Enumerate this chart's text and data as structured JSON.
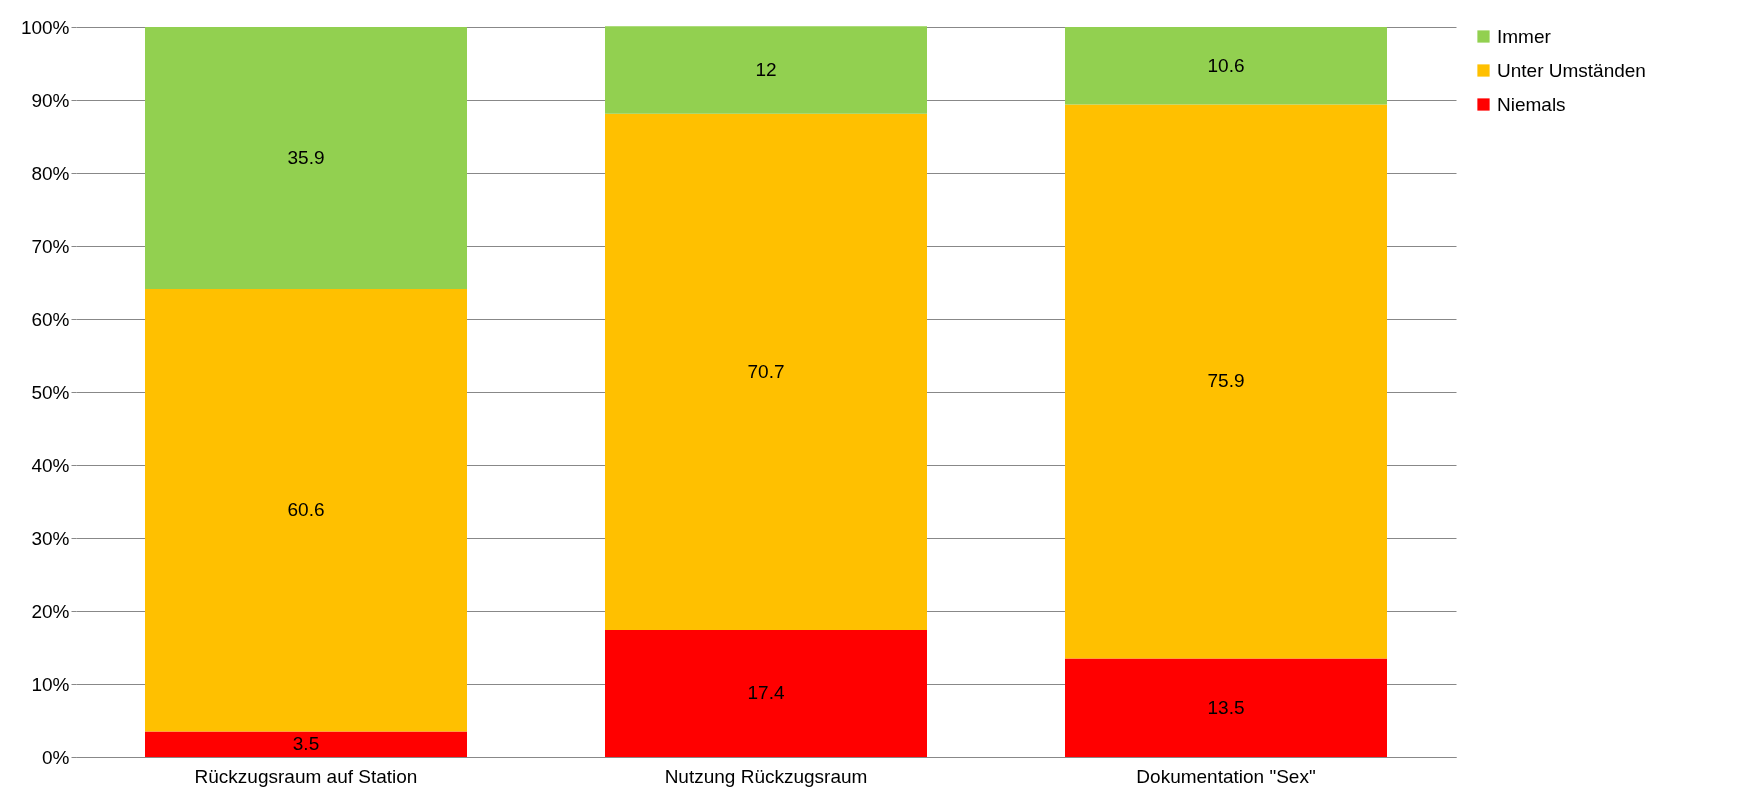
{
  "chart_data": {
    "type": "bar",
    "stacked": true,
    "categories": [
      "Rückzugsraum auf Station",
      "Nutzung Rückzugsraum",
      "Dokumentation \"Sex\""
    ],
    "series": [
      {
        "name": "Niemals",
        "color": "#ff0000",
        "values": [
          3.5,
          17.4,
          13.5
        ]
      },
      {
        "name": "Unter Umständen",
        "color": "#ffc000",
        "values": [
          60.6,
          70.7,
          75.9
        ]
      },
      {
        "name": "Immer",
        "color": "#92d050",
        "values": [
          35.9,
          12,
          10.6
        ]
      }
    ],
    "ylim": [
      0,
      100
    ],
    "yticks": [
      {
        "value": 0,
        "label": "0%"
      },
      {
        "value": 10,
        "label": "10%"
      },
      {
        "value": 20,
        "label": "20%"
      },
      {
        "value": 30,
        "label": "30%"
      },
      {
        "value": 40,
        "label": "40%"
      },
      {
        "value": 50,
        "label": "50%"
      },
      {
        "value": 60,
        "label": "60%"
      },
      {
        "value": 70,
        "label": "70%"
      },
      {
        "value": 80,
        "label": "80%"
      },
      {
        "value": 90,
        "label": "90%"
      },
      {
        "value": 100,
        "label": "100%"
      }
    ],
    "grid": "y",
    "legend": "right",
    "data_labels": true
  }
}
